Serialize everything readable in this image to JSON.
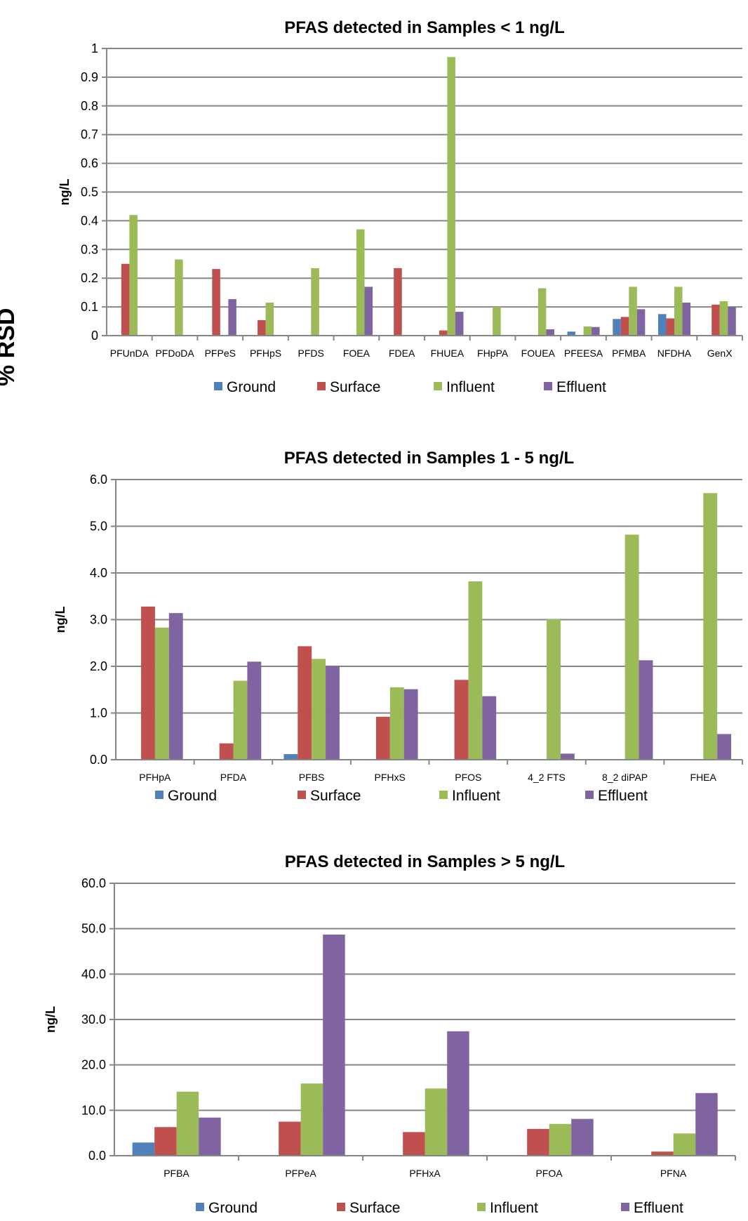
{
  "side_label": "% RSD",
  "series_colors": {
    "Ground": "#4f81bd",
    "Surface": "#c0504d",
    "Influent": "#9bbb59",
    "Effluent": "#8064a2"
  },
  "chart_data": [
    {
      "type": "bar",
      "title": "PFAS detected in Samples < 1 ng/L",
      "xlabel": "",
      "ylabel": "ng/L",
      "ylim": [
        0,
        1
      ],
      "yticks": [
        "0",
        "0.1",
        "0.2",
        "0.3",
        "0.4",
        "0.5",
        "0.6",
        "0.7",
        "0.8",
        "0.9",
        "1"
      ],
      "grid": true,
      "legend_position": "bottom",
      "categories": [
        "PFUnDA",
        "PFDoDA",
        "PFPeS",
        "PFHpS",
        "PFDS",
        "FOEA",
        "FDEA",
        "FHUEA",
        "FHpPA",
        "FOUEA",
        "PFEESA",
        "PFMBA",
        "NFDHA",
        "GenX"
      ],
      "series": [
        {
          "name": "Ground",
          "values": [
            0,
            0,
            0,
            0,
            0,
            0,
            0,
            0,
            0,
            0,
            0.014,
            0.058,
            0.075,
            0
          ]
        },
        {
          "name": "Surface",
          "values": [
            0.25,
            0,
            0.232,
            0.054,
            0,
            0,
            0.235,
            0.018,
            0,
            0,
            0,
            0.065,
            0.06,
            0.108
          ]
        },
        {
          "name": "Influent",
          "values": [
            0.42,
            0.265,
            0,
            0.115,
            0.235,
            0.37,
            0,
            0.97,
            0.1,
            0.165,
            0.032,
            0.17,
            0.17,
            0.12
          ]
        },
        {
          "name": "Effluent",
          "values": [
            0,
            0,
            0.127,
            0,
            0,
            0.17,
            0,
            0.083,
            0,
            0.022,
            0.03,
            0.092,
            0.115,
            0.1
          ]
        }
      ]
    },
    {
      "type": "bar",
      "title": "PFAS detected in Samples 1 - 5 ng/L",
      "xlabel": "",
      "ylabel": "ng/L",
      "ylim": [
        0,
        6
      ],
      "yticks": [
        "0.0",
        "1.0",
        "2.0",
        "3.0",
        "4.0",
        "5.0",
        "6.0"
      ],
      "grid": true,
      "legend_position": "bottom",
      "categories": [
        "PFHpA",
        "PFDA",
        "PFBS",
        "PFHxS",
        "PFOS",
        "4_2 FTS",
        "8_2 diPAP",
        "FHEA"
      ],
      "series": [
        {
          "name": "Ground",
          "values": [
            0,
            0,
            0.12,
            0,
            0,
            0,
            0,
            0
          ]
        },
        {
          "name": "Surface",
          "values": [
            3.28,
            0.35,
            2.43,
            0.92,
            1.71,
            0,
            0,
            0
          ]
        },
        {
          "name": "Influent",
          "values": [
            2.83,
            1.69,
            2.16,
            1.55,
            3.82,
            3.01,
            4.82,
            5.71
          ]
        },
        {
          "name": "Effluent",
          "values": [
            3.14,
            2.1,
            2.01,
            1.51,
            1.36,
            0.13,
            2.13,
            0.55
          ]
        }
      ]
    },
    {
      "type": "bar",
      "title": "PFAS detected in Samples > 5 ng/L",
      "xlabel": "",
      "ylabel": "ng/L",
      "ylim": [
        0,
        60
      ],
      "yticks": [
        "0.0",
        "10.0",
        "20.0",
        "30.0",
        "40.0",
        "50.0",
        "60.0"
      ],
      "grid": true,
      "legend_position": "bottom",
      "categories": [
        "PFBA",
        "PFPeA",
        "PFHxA",
        "PFOA",
        "PFNA"
      ],
      "series": [
        {
          "name": "Ground",
          "values": [
            2.9,
            0,
            0,
            0,
            0
          ]
        },
        {
          "name": "Surface",
          "values": [
            6.3,
            7.5,
            5.2,
            5.9,
            0.9
          ]
        },
        {
          "name": "Influent",
          "values": [
            14.1,
            15.9,
            14.8,
            7.0,
            4.9
          ]
        },
        {
          "name": "Effluent",
          "values": [
            8.4,
            48.7,
            27.4,
            8.1,
            13.8
          ]
        }
      ]
    }
  ]
}
